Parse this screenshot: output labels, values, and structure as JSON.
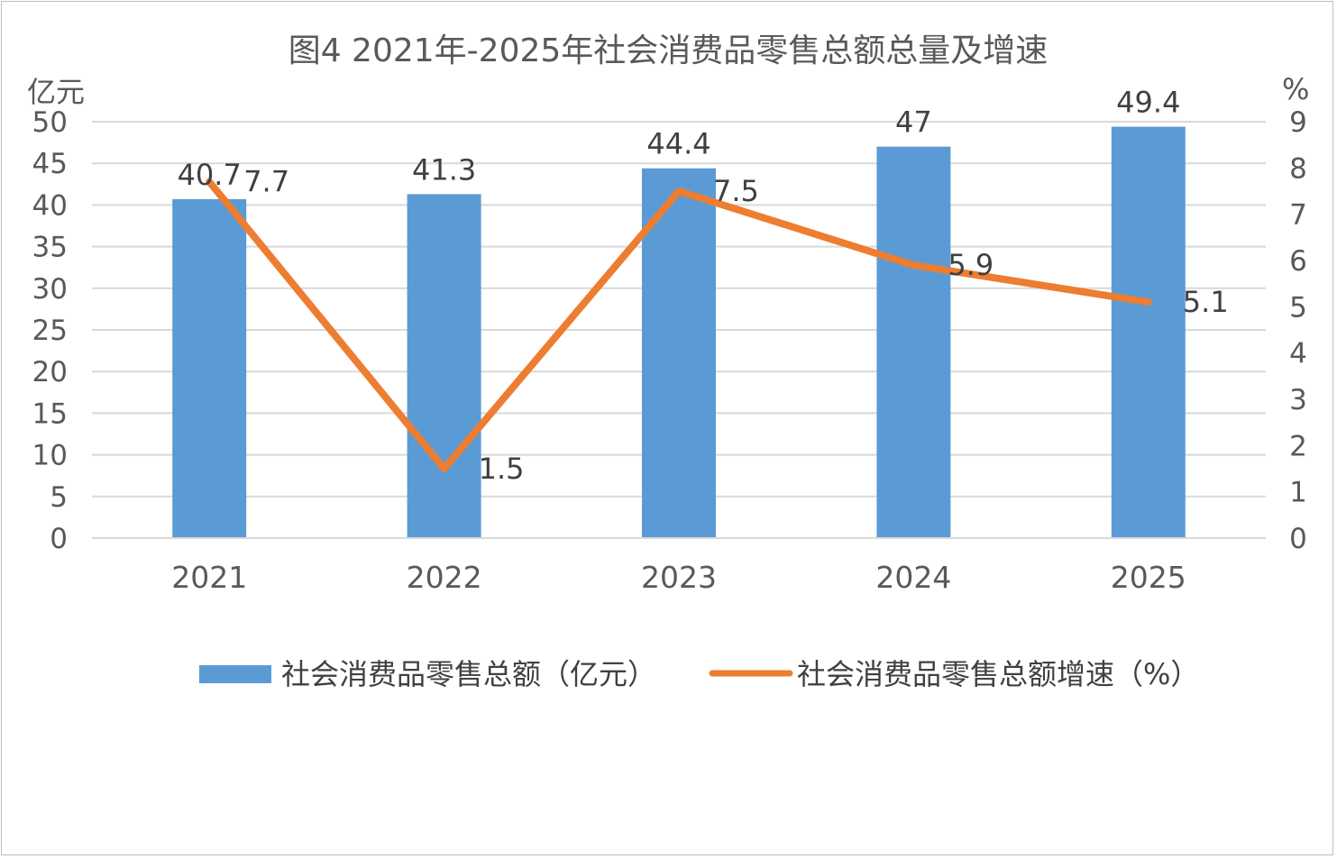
{
  "chart_data": {
    "type": "bar+line",
    "title": "图4 2021年-2025年社会消费品零售总额总量及增速",
    "y_left_unit": "亿元",
    "y_right_unit": "%",
    "categories": [
      "2021",
      "2022",
      "2023",
      "2024",
      "2025"
    ],
    "ylim_left": [
      0,
      50
    ],
    "yticks_left": [
      "0",
      "5",
      "10",
      "15",
      "20",
      "25",
      "30",
      "35",
      "40",
      "45",
      "50"
    ],
    "ylim_right": [
      0,
      9
    ],
    "yticks_right": [
      "0",
      "1",
      "2",
      "3",
      "4",
      "5",
      "6",
      "7",
      "8",
      "9"
    ],
    "grid": true,
    "legend_position": "bottom",
    "series": [
      {
        "name": "社会消费品零售总额（亿元）",
        "type": "bar",
        "axis": "left",
        "color": "#5b9bd5",
        "values": [
          40.7,
          41.3,
          44.4,
          47,
          49.4
        ],
        "labels": [
          "40.7",
          "41.3",
          "44.4",
          "47",
          "49.4"
        ]
      },
      {
        "name": "社会消费品零售总额增速（%）",
        "type": "line",
        "axis": "right",
        "color": "#ed7d31",
        "values": [
          7.7,
          1.5,
          7.5,
          5.9,
          5.1
        ],
        "labels": [
          "7.7",
          "1.5",
          "7.5",
          "5.9",
          "5.1"
        ]
      }
    ]
  }
}
